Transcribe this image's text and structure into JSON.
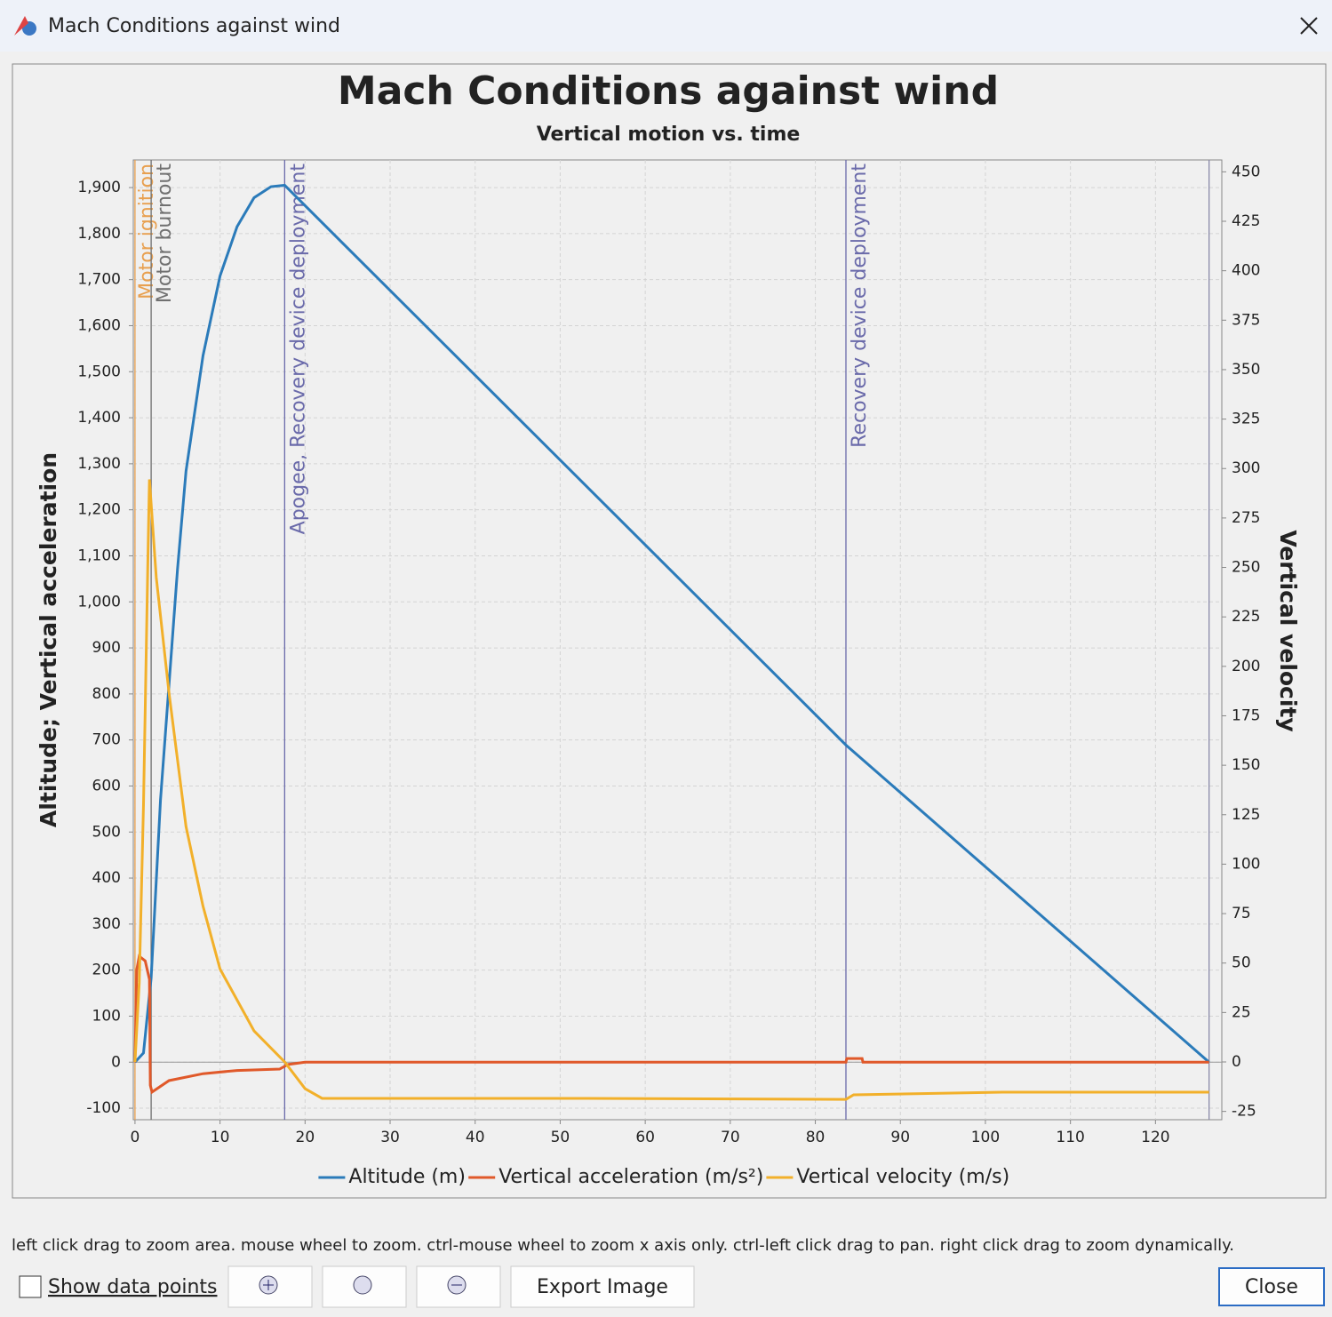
{
  "window": {
    "title": "Mach Conditions against wind"
  },
  "chart_data": {
    "type": "line",
    "title": "Mach Conditions against wind",
    "subtitle": "Vertical motion vs. time",
    "y_label": "Altitude; Vertical acceleration",
    "y2_label": "Vertical velocity",
    "xlim": [
      -0.2,
      127.8
    ],
    "xticks": [
      0,
      10,
      20,
      30,
      40,
      50,
      60,
      70,
      80,
      90,
      100,
      110,
      120
    ],
    "ylim": [
      -125,
      1960
    ],
    "yticks": [
      -100,
      0,
      100,
      200,
      300,
      400,
      500,
      600,
      700,
      800,
      900,
      {
        "value": 1000,
        "label": "1,000"
      },
      {
        "value": 1100,
        "label": "1,100"
      },
      {
        "value": 1200,
        "label": "1,200"
      },
      {
        "value": 1300,
        "label": "1,300"
      },
      {
        "value": 1400,
        "label": "1,400"
      },
      {
        "value": 1500,
        "label": "1,500"
      },
      {
        "value": 1600,
        "label": "1,600"
      },
      {
        "value": 1700,
        "label": "1,700"
      },
      {
        "value": 1800,
        "label": "1,800"
      },
      {
        "value": 1900,
        "label": "1,900"
      }
    ],
    "y2lim": [
      -29.2,
      456
    ],
    "y2ticks": [
      -25,
      0,
      25,
      50,
      75,
      100,
      125,
      150,
      175,
      200,
      225,
      250,
      275,
      300,
      325,
      350,
      375,
      400,
      425,
      450
    ],
    "grid": true,
    "legend": "bottom",
    "series": [
      {
        "name": "Altitude (m)",
        "color": "#2b7bba",
        "x": [
          0,
          1,
          1.9,
          3,
          4,
          5,
          6,
          8,
          10,
          12,
          14,
          16,
          17.6,
          83.6,
          126.3
        ],
        "values": [
          0,
          20,
          183,
          570,
          820,
          1071,
          1284,
          1535,
          1708,
          1815,
          1878,
          1902,
          1905,
          689,
          0
        ]
      },
      {
        "name": "Vertical acceleration (m/s²)",
        "color": "#e0592a",
        "x": [
          0,
          0.2,
          0.5,
          1.2,
          1.7,
          1.8,
          2.0,
          4,
          8,
          12,
          17,
          18,
          20,
          83.6,
          83.7,
          85.5,
          85.6,
          126.3
        ],
        "values": [
          0,
          200,
          230,
          220,
          180,
          -50,
          -65,
          -40,
          -25,
          -18,
          -15,
          -5,
          0,
          0,
          8,
          8,
          0,
          0
        ]
      },
      {
        "name": "Vertical velocity (m/s)",
        "color": "#f2b02a",
        "axis": "y2",
        "x": [
          0,
          0.5,
          1.0,
          1.5,
          1.7,
          2.5,
          4,
          6,
          8,
          10,
          14,
          17.6,
          20,
          22,
          53,
          83.6,
          84.5,
          102,
          126.3
        ],
        "values": [
          0,
          40,
          130,
          250,
          294.5,
          245,
          186.6,
          119,
          78.7,
          47,
          15.7,
          0,
          -13.5,
          -18.4,
          -18.4,
          -18.9,
          -16.6,
          -15.3,
          -15.3
        ]
      }
    ],
    "events": [
      {
        "time": 0,
        "label": "Motor ignition",
        "color": "#e8a050"
      },
      {
        "time": 1.9,
        "label": "Motor burnout",
        "color": "#707070"
      },
      {
        "time": 17.6,
        "label": "Apogee, Recovery device deployment",
        "color": "#6a6aaa"
      },
      {
        "time": 83.6,
        "label": "Recovery device deployment",
        "color": "#6a6aaa"
      },
      {
        "time": 126.3,
        "color": "#8a8aa8"
      }
    ]
  },
  "footer": {
    "hint": "left click drag to zoom area. mouse wheel to zoom. ctrl-mouse wheel to zoom x axis only. ctrl-left click drag to pan.  right click drag to zoom dynamically.",
    "checkbox": "Show data points",
    "export": "Export Image",
    "close": "Close"
  }
}
